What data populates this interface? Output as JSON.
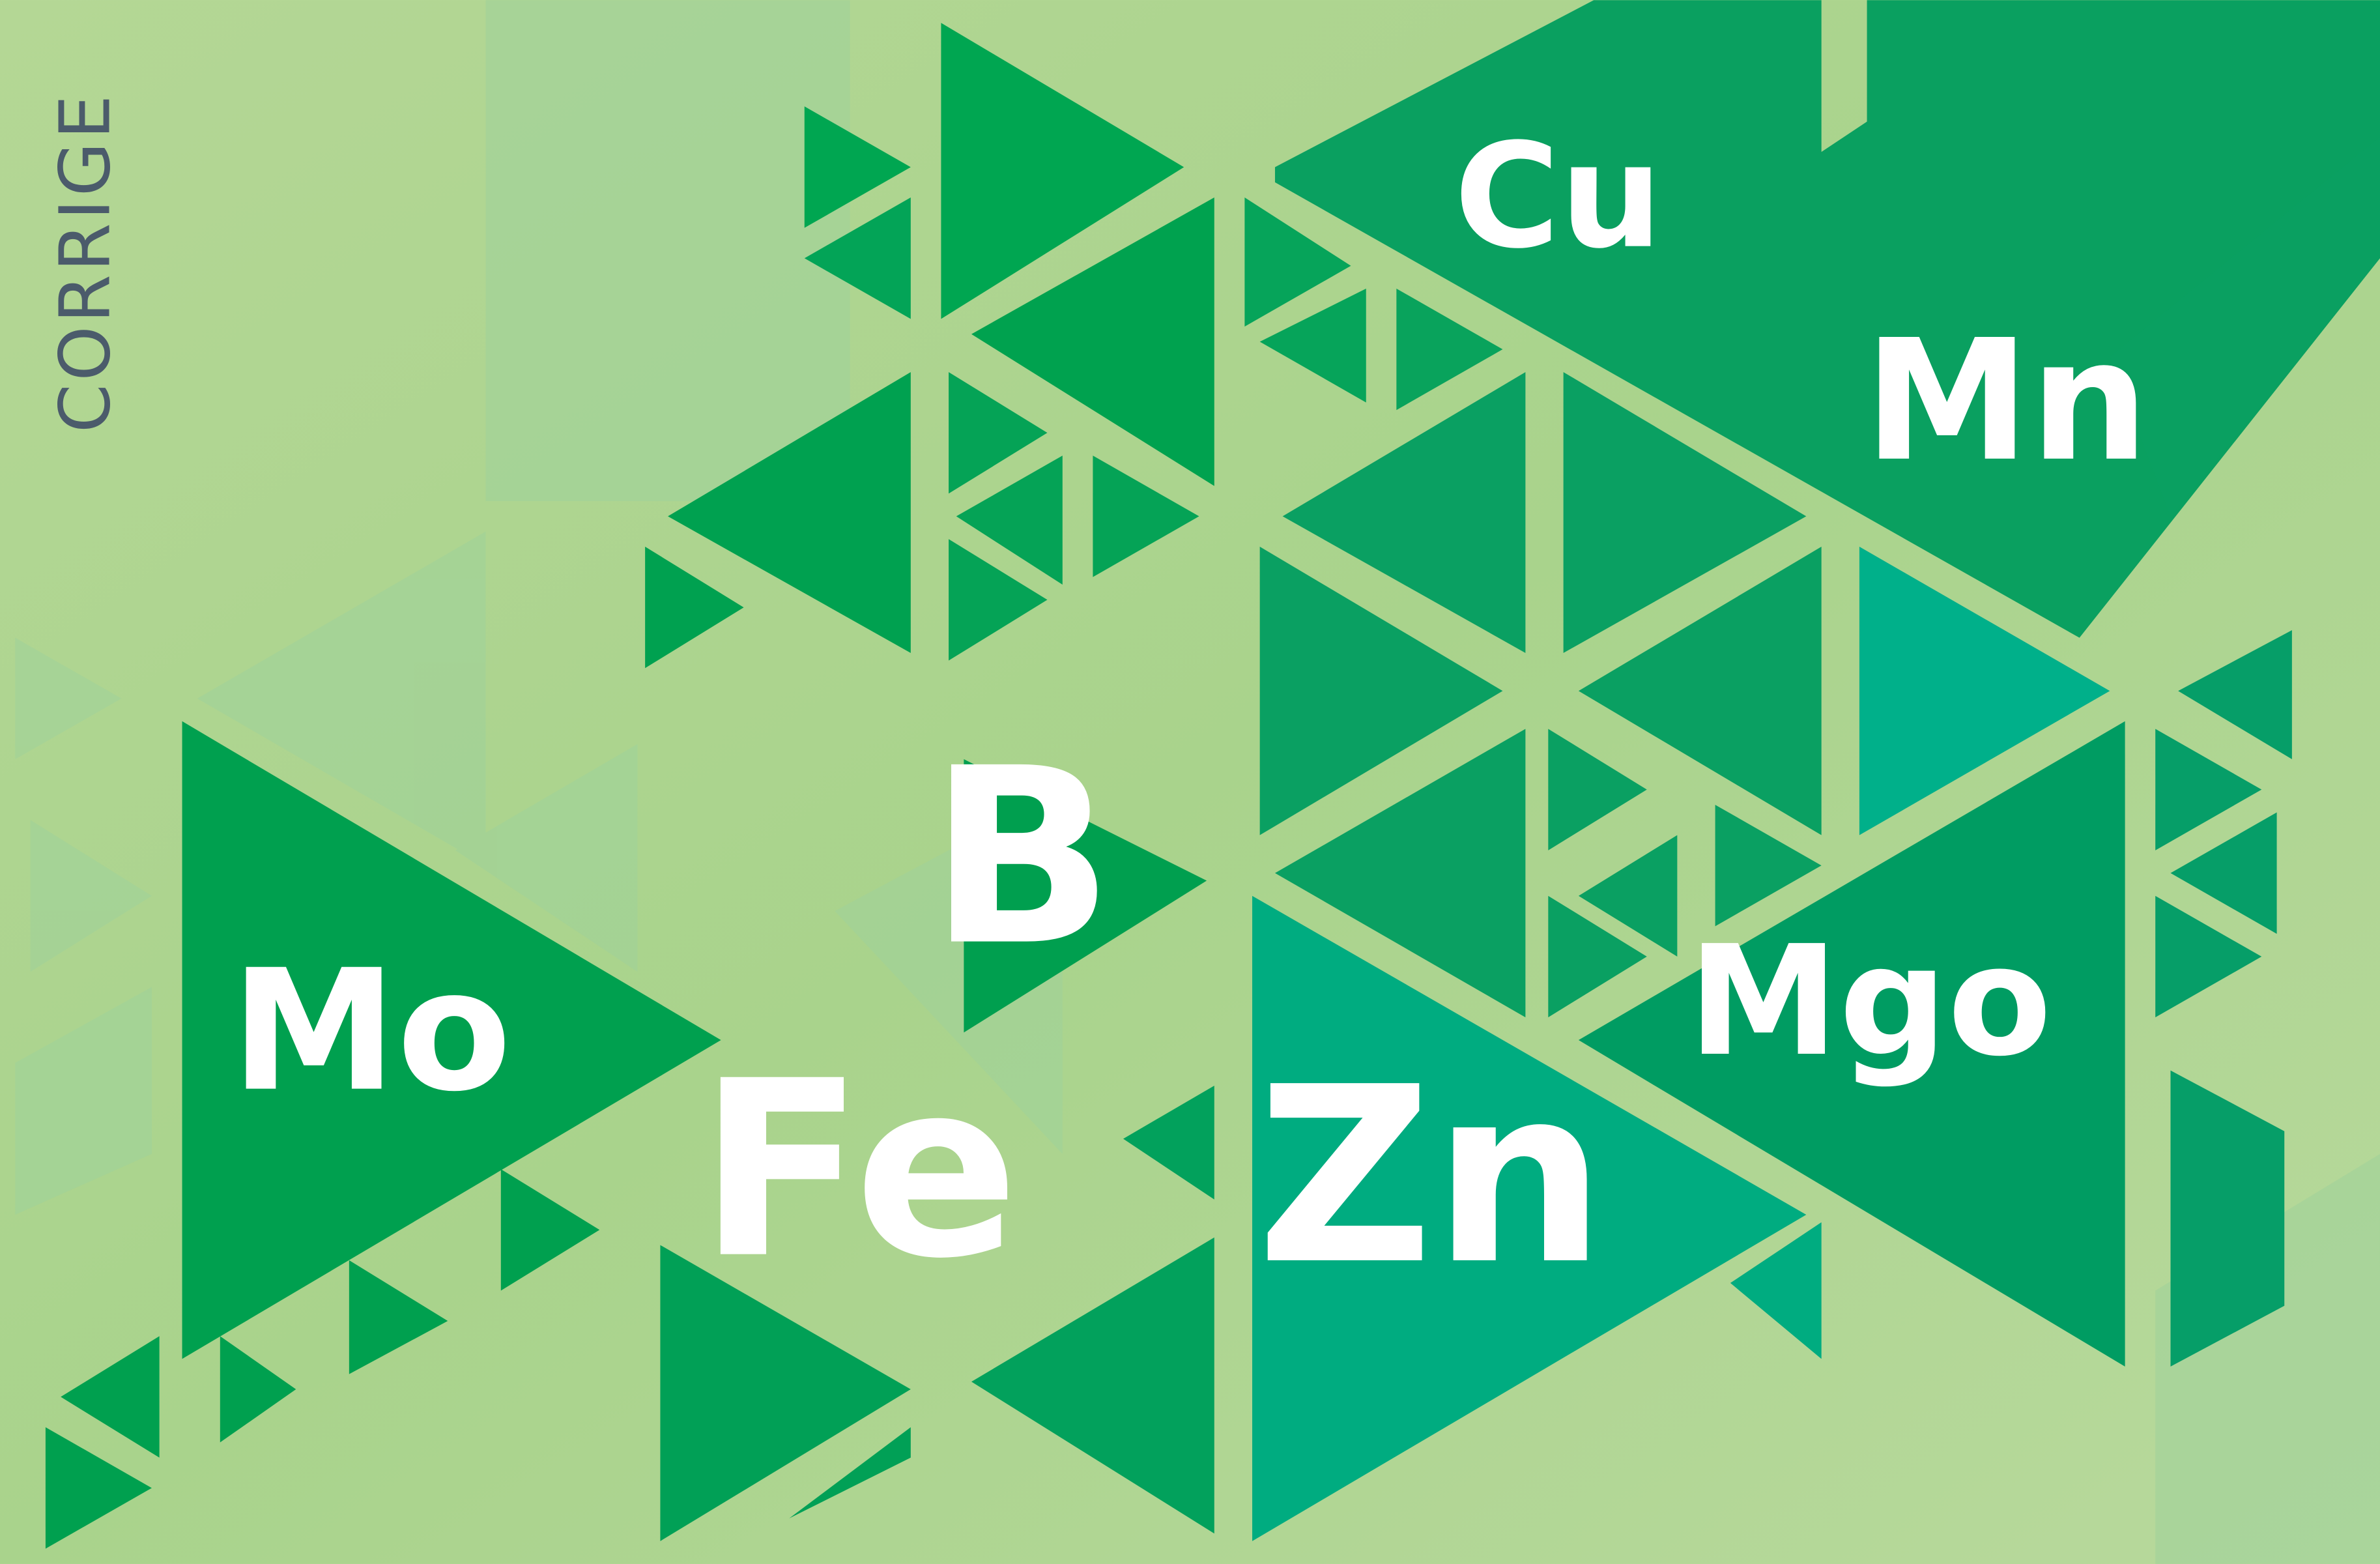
{
  "side_text": "CORRIGE",
  "elements": [
    "Cu",
    "Mn",
    "B",
    "Mo",
    "Mgo",
    "Fe",
    "Zn"
  ]
}
